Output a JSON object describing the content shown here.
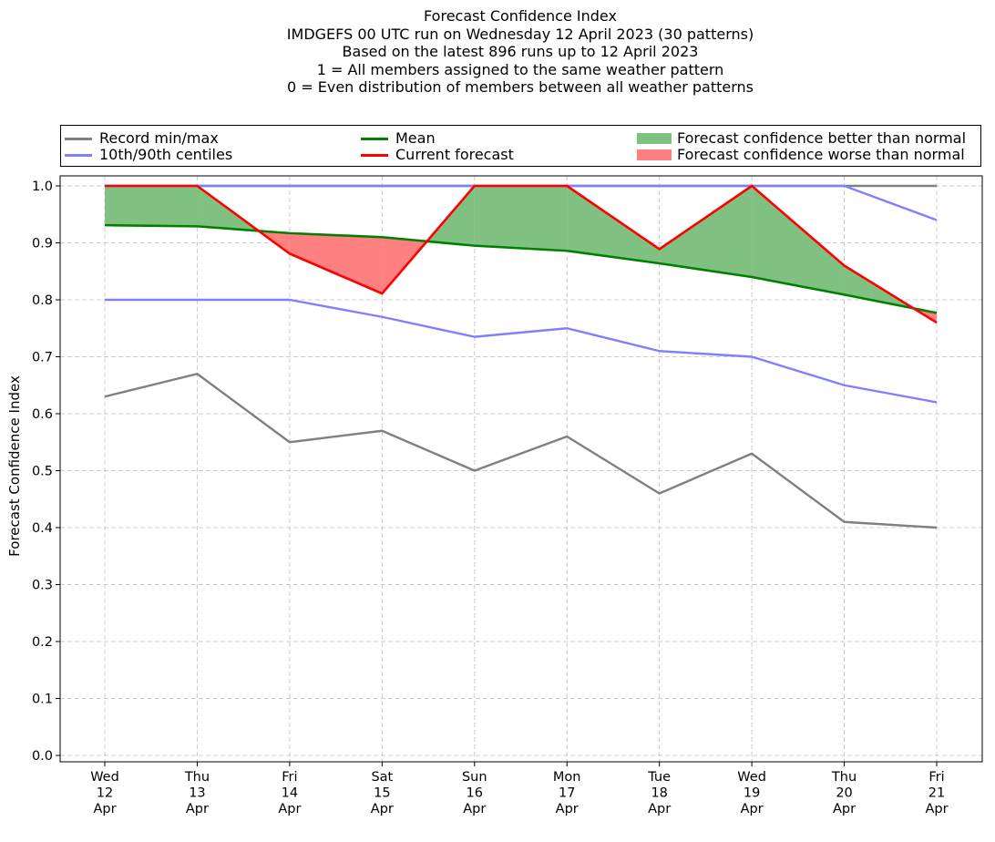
{
  "chart_data": {
    "type": "line",
    "title_lines": [
      "Forecast Confidence Index",
      "IMDGEFS 00 UTC run on Wednesday 12 April 2023 (30 patterns)",
      "Based on the latest 896 runs up to 12 April 2023",
      "1 = All members assigned to the same weather pattern",
      "0 = Even distribution of members between all weather patterns"
    ],
    "ylabel": "Forecast Confidence Index",
    "ylim": [
      0,
      1.0
    ],
    "yticks": [
      "0.0",
      "0.1",
      "0.2",
      "0.3",
      "0.4",
      "0.5",
      "0.6",
      "0.7",
      "0.8",
      "0.9",
      "1.0"
    ],
    "categories": [
      [
        "Wed",
        "12",
        "Apr"
      ],
      [
        "Thu",
        "13",
        "Apr"
      ],
      [
        "Fri",
        "14",
        "Apr"
      ],
      [
        "Sat",
        "15",
        "Apr"
      ],
      [
        "Sun",
        "16",
        "Apr"
      ],
      [
        "Mon",
        "17",
        "Apr"
      ],
      [
        "Tue",
        "18",
        "Apr"
      ],
      [
        "Wed",
        "19",
        "Apr"
      ],
      [
        "Thu",
        "20",
        "Apr"
      ],
      [
        "Fri",
        "21",
        "Apr"
      ]
    ],
    "grid": true,
    "legend_position": "top",
    "legend": [
      {
        "label": "Record min/max",
        "kind": "line",
        "color": "#808080"
      },
      {
        "label": "10th/90th centiles",
        "kind": "line",
        "color": "#8080ff"
      },
      {
        "label": "Mean",
        "kind": "line",
        "color": "#008000"
      },
      {
        "label": "Current forecast",
        "kind": "line",
        "color": "#ff0000"
      },
      {
        "label": "Forecast confidence better than normal",
        "kind": "fill",
        "color": "#80c080"
      },
      {
        "label": "Forecast confidence worse than normal",
        "kind": "fill",
        "color": "#ff8080"
      }
    ],
    "series": [
      {
        "name": "Record min/max",
        "role": "record_max",
        "color": "#808080",
        "values": [
          1.0,
          1.0,
          1.0,
          1.0,
          1.0,
          1.0,
          1.0,
          1.0,
          1.0,
          1.0
        ]
      },
      {
        "name": "Record min/max",
        "role": "record_min",
        "color": "#808080",
        "values": [
          0.63,
          0.67,
          0.55,
          0.57,
          0.5,
          0.56,
          0.46,
          0.53,
          0.41,
          0.4
        ]
      },
      {
        "name": "10th/90th centiles",
        "role": "p90",
        "color": "#8080ff",
        "values": [
          1.0,
          1.0,
          1.0,
          1.0,
          1.0,
          1.0,
          1.0,
          1.0,
          1.0,
          0.94
        ]
      },
      {
        "name": "10th/90th centiles",
        "role": "p10",
        "color": "#8080ff",
        "values": [
          0.8,
          0.8,
          0.8,
          0.77,
          0.735,
          0.75,
          0.71,
          0.7,
          0.65,
          0.62
        ]
      },
      {
        "name": "Mean",
        "role": "mean",
        "color": "#008000",
        "values": [
          0.931,
          0.929,
          0.917,
          0.91,
          0.895,
          0.886,
          0.864,
          0.84,
          0.809,
          0.777
        ]
      },
      {
        "name": "Current forecast",
        "role": "current",
        "color": "#ff0000",
        "values": [
          1.0,
          1.0,
          0.881,
          0.811,
          1.0,
          1.0,
          0.889,
          1.0,
          0.86,
          0.76
        ]
      }
    ],
    "fill_colors": {
      "better": "#80c080",
      "worse": "#ff8080"
    }
  }
}
